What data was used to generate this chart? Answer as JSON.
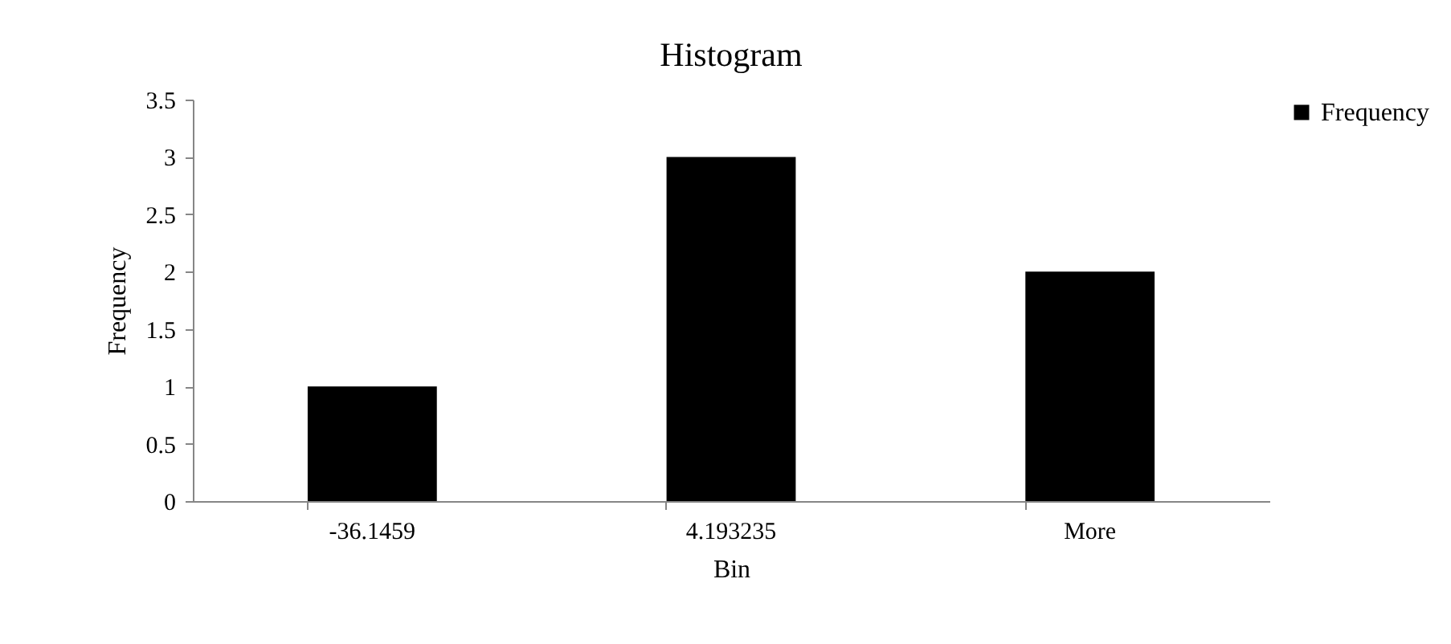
{
  "chart_data": {
    "type": "bar",
    "title": "Histogram",
    "xlabel": "Bin",
    "ylabel": "Frequency",
    "categories": [
      "-36.1459",
      "4.193235",
      "More"
    ],
    "series": [
      {
        "name": "Frequency",
        "color": "#000000",
        "values": [
          1,
          3,
          2
        ]
      }
    ],
    "ylim": [
      0,
      3.5
    ],
    "yticks": [
      0,
      0.5,
      1,
      1.5,
      2,
      2.5,
      3,
      3.5
    ],
    "legend": "right"
  }
}
